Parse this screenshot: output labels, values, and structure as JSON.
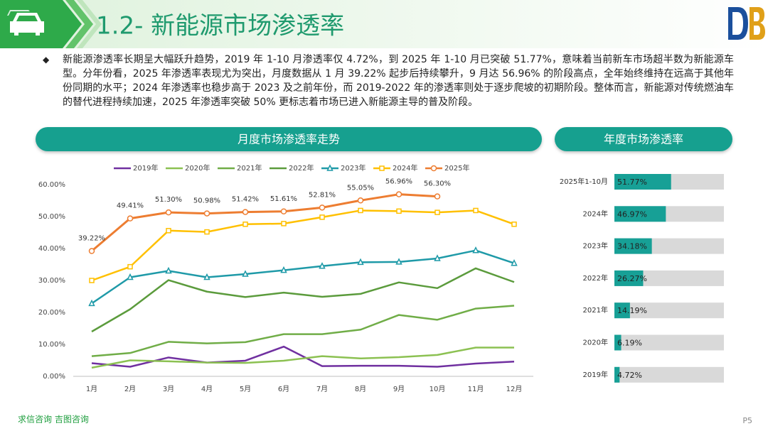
{
  "header": {
    "title": "1.2- 新能源市场渗透率"
  },
  "summary": "新能源渗透率长期呈大幅跃升趋势，2019 年 1-10 月渗透率仅 4.72%，到 2025 年 1-10 月已突破 51.77%，意味着当前新车市场超半数为新能源车型。分年份看，2025 年渗透率表现尤为突出，月度数据从 1 月 39.22% 起步后持续攀升，9 月达 56.96% 的阶段高点，全年始终维持在远高于其他年份同期的水平；2024 年渗透率也稳步高于 2023 及之前年份，而 2019-2022 年的渗透率则处于逐步爬坡的初期阶段。整体而言，新能源对传统燃油车的替代进程持续加速，2025 年渗透率突破 50% 更标志着市场已进入新能源主导的普及阶段。",
  "chart_data": [
    {
      "type": "line",
      "title": "月度市场渗透率走势",
      "categories": [
        "1月",
        "2月",
        "3月",
        "4月",
        "5月",
        "6月",
        "7月",
        "8月",
        "9月",
        "10月",
        "11月",
        "12月"
      ],
      "ylim": [
        0,
        60
      ],
      "yticks": [
        {
          "value": 0,
          "label": "0.00%"
        },
        {
          "value": 10,
          "label": "10.00%"
        },
        {
          "value": 20,
          "label": "20.00%"
        },
        {
          "value": 30,
          "label": "30.00%"
        },
        {
          "value": 40,
          "label": "40.00%"
        },
        {
          "value": 50,
          "label": "50.00%"
        },
        {
          "value": 60,
          "label": "60.00%"
        }
      ],
      "grid": false,
      "legend": "top",
      "series": [
        {
          "name": "2019年",
          "color": "#7030a0",
          "marker": "none",
          "values": [
            4.1,
            3.0,
            5.9,
            4.3,
            4.9,
            9.3,
            3.2,
            3.3,
            3.3,
            3.0,
            4.0,
            4.6
          ]
        },
        {
          "name": "2020年",
          "color": "#8cc152",
          "marker": "none",
          "values": [
            2.7,
            5.0,
            4.7,
            4.3,
            4.2,
            4.9,
            6.3,
            5.6,
            6.0,
            6.7,
            9.0,
            9.0
          ]
        },
        {
          "name": "2021年",
          "color": "#70ad47",
          "marker": "none",
          "values": [
            6.3,
            7.3,
            10.8,
            10.3,
            10.7,
            13.2,
            13.2,
            14.6,
            19.2,
            17.7,
            21.2,
            22.1
          ]
        },
        {
          "name": "2022年",
          "color": "#5b9b3c",
          "marker": "none",
          "values": [
            14.0,
            21.0,
            30.1,
            26.5,
            24.8,
            26.2,
            24.9,
            25.8,
            29.4,
            27.6,
            33.8,
            29.5
          ]
        },
        {
          "name": "2023年",
          "color": "#1f9aa8",
          "marker": "triangle",
          "values": [
            22.8,
            31.0,
            33.0,
            31.0,
            32.0,
            33.2,
            34.5,
            35.7,
            35.8,
            36.9,
            39.4,
            35.4
          ]
        },
        {
          "name": "2024年",
          "color": "#ffc000",
          "marker": "square",
          "values": [
            30.0,
            34.3,
            45.6,
            45.2,
            47.6,
            47.8,
            49.8,
            51.9,
            51.7,
            51.3,
            51.9,
            47.6
          ]
        },
        {
          "name": "2025年",
          "color": "#ed7d31",
          "marker": "circle",
          "values": [
            39.22,
            49.41,
            51.3,
            50.98,
            51.42,
            51.61,
            52.81,
            55.05,
            56.96,
            56.3,
            null,
            null
          ],
          "value_labels": [
            "39.22%",
            "49.41%",
            "51.30%",
            "50.98%",
            "51.42%",
            "51.61%",
            "52.81%",
            "55.05%",
            "56.96%",
            "56.30%",
            null,
            null
          ]
        }
      ]
    },
    {
      "type": "hbar",
      "title": "年度市场渗透率",
      "categories": [
        "2025年1-10月",
        "2024年",
        "2023年",
        "2022年",
        "2021年",
        "2020年",
        "2019年"
      ],
      "values": [
        51.77,
        46.97,
        34.18,
        26.27,
        14.19,
        6.19,
        4.72
      ],
      "value_labels": [
        "51.77%",
        "46.97%",
        "34.18%",
        "26.27%",
        "14.19%",
        "6.19%",
        "4.72%"
      ],
      "xlim": [
        0,
        100
      ],
      "color": "#17a096"
    }
  ],
  "footer": {
    "source": "求信咨询  吉图咨询",
    "page": "P5"
  }
}
